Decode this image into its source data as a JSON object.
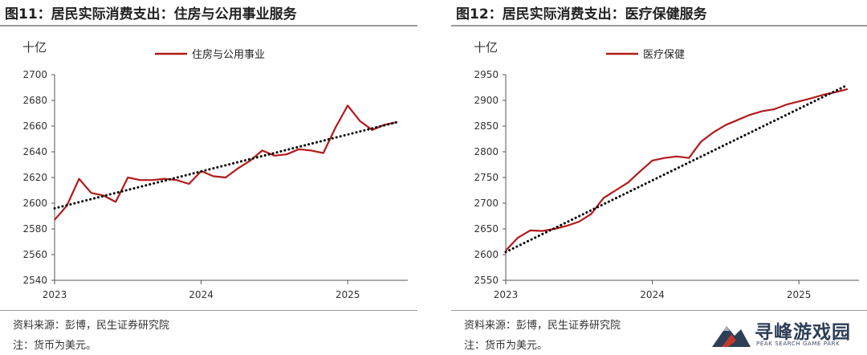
{
  "charts": [
    {
      "title": "图11：居民实际消费支出：住房与公用事业服务",
      "unit": "十亿",
      "source_note": "资料来源：彭博，民生证券研究院",
      "currency_note": "",
      "colors": {
        "series": "#b21a1a",
        "trend": "#000000"
      }
    },
    {
      "title": "图12：居民实际消费支出：医疗保健服务",
      "unit": "十亿",
      "source_note": "资料来源：彭博，民生证券研究院",
      "currency_note": "注：货币为美元。",
      "colors": {
        "series": "#b21a1a",
        "trend": "#000000"
      }
    }
  ],
  "chart_data": [
    {
      "type": "line",
      "title": "图11：居民实际消费支出：住房与公用事业服务",
      "ylabel": "十亿",
      "ylim": [
        2540,
        2700
      ],
      "yticks": [
        2540,
        2560,
        2580,
        2600,
        2620,
        2640,
        2660,
        2680,
        2700
      ],
      "xlim": [
        2023.0,
        2025.41
      ],
      "xticks": [
        "2023",
        "2024",
        "2025"
      ],
      "legend_position": "top",
      "series": [
        {
          "name": "住房与公用事业",
          "x": [
            2023.0,
            2023.083,
            2023.167,
            2023.25,
            2023.333,
            2023.417,
            2023.5,
            2023.583,
            2023.667,
            2023.75,
            2023.833,
            2023.917,
            2024.0,
            2024.083,
            2024.167,
            2024.25,
            2024.333,
            2024.417,
            2024.5,
            2024.583,
            2024.667,
            2024.75,
            2024.833,
            2024.917,
            2025.0,
            2025.083,
            2025.167,
            2025.25,
            2025.333
          ],
          "values": [
            2587,
            2598,
            2619,
            2608,
            2606,
            2601,
            2620,
            2618,
            2618,
            2619,
            2618,
            2615,
            2625,
            2621,
            2620,
            2627,
            2633,
            2641,
            2637,
            2638,
            2642,
            2641,
            2639,
            2659,
            2676,
            2664,
            2657,
            2661,
            2663
          ]
        },
        {
          "name": "trend",
          "style": "dotted",
          "x": [
            2023.0,
            2025.333
          ],
          "values": [
            2596,
            2663
          ]
        }
      ]
    },
    {
      "type": "line",
      "title": "图12：居民实际消费支出：医疗保健服务",
      "ylabel": "十亿",
      "ylim": [
        2550,
        2950
      ],
      "yticks": [
        2550,
        2600,
        2650,
        2700,
        2750,
        2800,
        2850,
        2900,
        2950
      ],
      "xlim": [
        2023.0,
        2025.41
      ],
      "xticks": [
        "2023",
        "2024",
        "2025"
      ],
      "legend_position": "top",
      "series": [
        {
          "name": "医疗保健",
          "x": [
            2023.0,
            2023.083,
            2023.167,
            2023.25,
            2023.333,
            2023.417,
            2023.5,
            2023.583,
            2023.667,
            2023.75,
            2023.833,
            2023.917,
            2024.0,
            2024.083,
            2024.167,
            2024.25,
            2024.333,
            2024.417,
            2024.5,
            2024.583,
            2024.667,
            2024.75,
            2024.833,
            2024.917,
            2025.0,
            2025.083,
            2025.167,
            2025.25,
            2025.333
          ],
          "values": [
            2608,
            2633,
            2647,
            2646,
            2650,
            2656,
            2664,
            2679,
            2710,
            2725,
            2740,
            2762,
            2783,
            2788,
            2791,
            2788,
            2820,
            2838,
            2852,
            2862,
            2872,
            2879,
            2883,
            2892,
            2898,
            2904,
            2911,
            2916,
            2922
          ]
        },
        {
          "name": "trend",
          "style": "dotted",
          "x": [
            2023.0,
            2025.333
          ],
          "values": [
            2605,
            2930
          ]
        }
      ]
    }
  ],
  "watermark": {
    "title": "寻峰游戏园",
    "subtitle": "PEAK SEARCH GAME PARK"
  }
}
